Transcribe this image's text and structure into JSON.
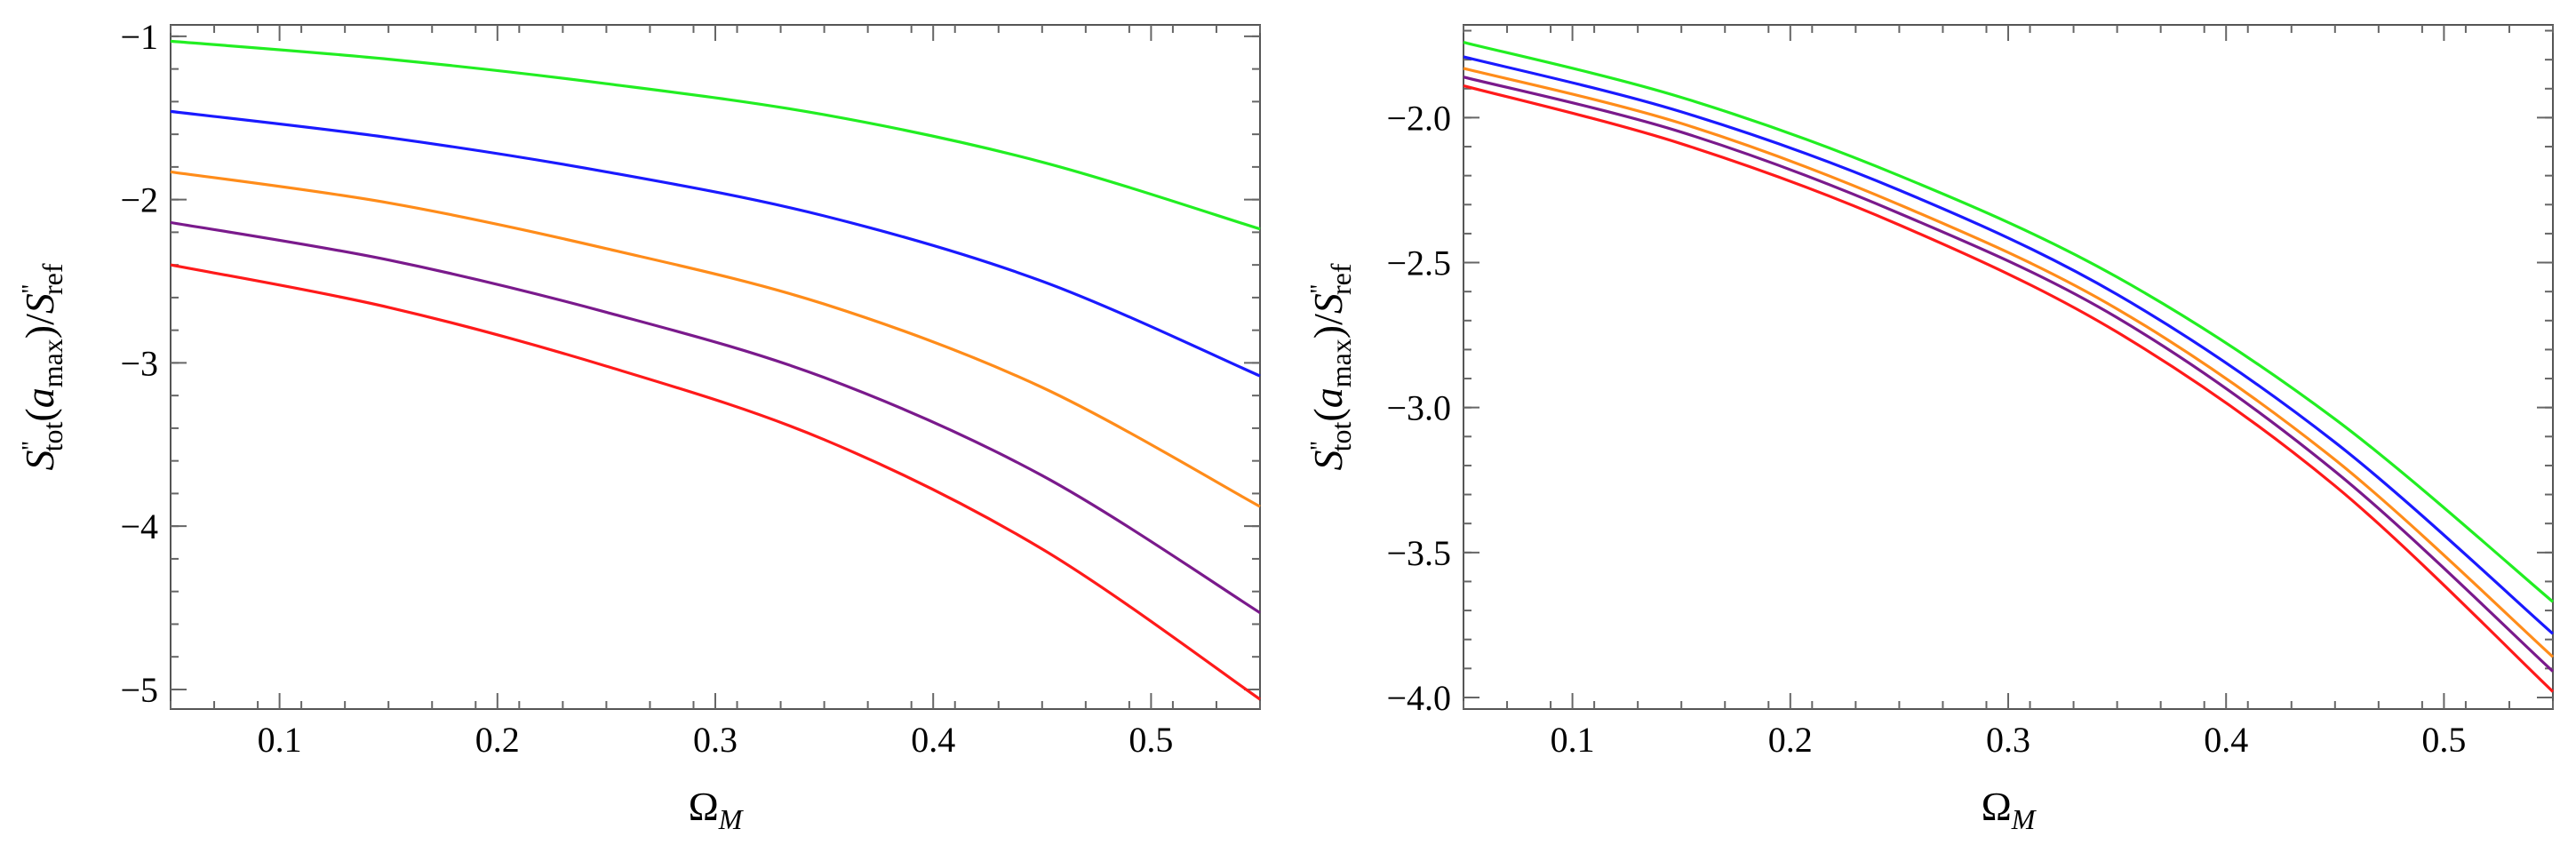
{
  "chart_data": [
    {
      "type": "line",
      "xlabel": "Ω",
      "xlabel_sub": "M",
      "ylabel_parts": [
        "S",
        "''",
        "tot",
        "(a",
        "max",
        ")/S",
        "''",
        "ref"
      ],
      "xlim": [
        0.05,
        0.55
      ],
      "ylim": [
        -5.12,
        -0.93
      ],
      "xticks": [
        0.1,
        0.2,
        0.3,
        0.4,
        0.5
      ],
      "xtick_labels": [
        "0.1",
        "0.2",
        "0.3",
        "0.4",
        "0.5"
      ],
      "yticks": [
        -1,
        -2,
        -3,
        -4,
        -5
      ],
      "ytick_labels": [
        "−1",
        "−2",
        "−3",
        "−4",
        "−5"
      ],
      "series": [
        {
          "name": "green",
          "color": "#22ee22",
          "x": [
            0.05,
            0.15,
            0.25,
            0.35,
            0.45,
            0.55
          ],
          "values": [
            -1.03,
            -1.14,
            -1.29,
            -1.48,
            -1.77,
            -2.18
          ]
        },
        {
          "name": "blue",
          "color": "#1a1aff",
          "x": [
            0.05,
            0.15,
            0.25,
            0.35,
            0.45,
            0.55
          ],
          "values": [
            -1.46,
            -1.62,
            -1.83,
            -2.1,
            -2.5,
            -3.08
          ]
        },
        {
          "name": "orange",
          "color": "#ff8c1a",
          "x": [
            0.05,
            0.15,
            0.25,
            0.35,
            0.45,
            0.55
          ],
          "values": [
            -1.83,
            -2.02,
            -2.3,
            -2.64,
            -3.15,
            -3.88
          ]
        },
        {
          "name": "purple",
          "color": "#7a1a8c",
          "x": [
            0.05,
            0.15,
            0.25,
            0.35,
            0.45,
            0.55
          ],
          "values": [
            -2.14,
            -2.37,
            -2.69,
            -3.09,
            -3.69,
            -4.53
          ]
        },
        {
          "name": "red",
          "color": "#ff1a1a",
          "x": [
            0.05,
            0.15,
            0.25,
            0.35,
            0.45,
            0.55
          ],
          "values": [
            -2.4,
            -2.66,
            -3.02,
            -3.47,
            -4.14,
            -5.06
          ]
        }
      ]
    },
    {
      "type": "line",
      "xlabel": "Ω",
      "xlabel_sub": "M",
      "ylabel_parts": [
        "S",
        "''",
        "tot",
        "(a",
        "max",
        ")/S",
        "''",
        "ref"
      ],
      "xlim": [
        0.05,
        0.55
      ],
      "ylim": [
        -4.04,
        -1.68
      ],
      "xticks": [
        0.1,
        0.2,
        0.3,
        0.4,
        0.5
      ],
      "xtick_labels": [
        "0.1",
        "0.2",
        "0.3",
        "0.4",
        "0.5"
      ],
      "yticks": [
        -2.0,
        -2.5,
        -3.0,
        -3.5,
        -4.0
      ],
      "ytick_labels": [
        "−2.0",
        "−2.5",
        "−3.0",
        "−3.5",
        "−4.0"
      ],
      "series": [
        {
          "name": "green",
          "color": "#22ee22",
          "x": [
            0.05,
            0.15,
            0.25,
            0.35,
            0.45,
            0.55
          ],
          "values": [
            -1.74,
            -1.93,
            -2.2,
            -2.55,
            -3.04,
            -3.67
          ]
        },
        {
          "name": "blue",
          "color": "#1a1aff",
          "x": [
            0.05,
            0.15,
            0.25,
            0.35,
            0.45,
            0.55
          ],
          "values": [
            -1.79,
            -1.98,
            -2.25,
            -2.61,
            -3.12,
            -3.78
          ]
        },
        {
          "name": "orange",
          "color": "#ff8c1a",
          "x": [
            0.05,
            0.15,
            0.25,
            0.35,
            0.45,
            0.55
          ],
          "values": [
            -1.83,
            -2.02,
            -2.3,
            -2.66,
            -3.18,
            -3.86
          ]
        },
        {
          "name": "purple",
          "color": "#7a1a8c",
          "x": [
            0.05,
            0.15,
            0.25,
            0.35,
            0.45,
            0.55
          ],
          "values": [
            -1.86,
            -2.05,
            -2.33,
            -2.69,
            -3.22,
            -3.91
          ]
        },
        {
          "name": "red",
          "color": "#ff1a1a",
          "x": [
            0.05,
            0.15,
            0.25,
            0.35,
            0.45,
            0.55
          ],
          "values": [
            -1.89,
            -2.09,
            -2.37,
            -2.74,
            -3.27,
            -3.98
          ]
        }
      ]
    }
  ]
}
